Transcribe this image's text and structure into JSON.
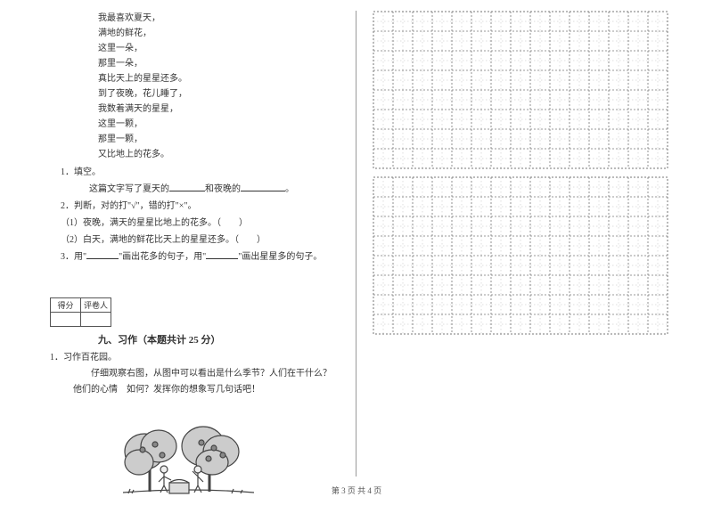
{
  "poem": {
    "lines": [
      "我最喜欢夏天，",
      "满地的鲜花，",
      "这里一朵，",
      "那里一朵，",
      "真比天上的星星还多。",
      "到了夜晚，花儿睡了，",
      "我数着满天的星星，",
      "这里一颗，",
      "那里一颗，",
      "又比地上的花多。"
    ]
  },
  "questions": {
    "q1_label": "1．填空。",
    "q1_text_a": "这篇文字写了夏天的",
    "q1_text_b": "和夜晚的",
    "q1_text_c": "。",
    "q2_label": "2．判断，对的打\"√\"，错的打\"×\"。",
    "q2_sub1": "（1）夜晚，满天的星星比地上的花多。（　　）",
    "q2_sub2": "（2）白天，满地的鲜花比天上的星星还多。（　　）",
    "q3_a": "3．用\"",
    "q3_b": "\"画出花多的句子，用\"",
    "q3_c": "\"画出星星多的句子。"
  },
  "score": {
    "h1": "得分",
    "h2": "评卷人"
  },
  "section9": {
    "title": "九、习作（本题共计 25 分）",
    "item_num": "1．习作百花园。",
    "prompt": "仔细观察右图，从图中可以看出是什么季节？人们在干什么？他们的心情　如何？发挥你的想象写几句话吧！"
  },
  "footer": {
    "text": "第 3 页  共 4 页"
  },
  "grid": {
    "rows": 8,
    "cols": 15,
    "cell": 22,
    "stroke": "#777777",
    "dash": "2,2"
  },
  "illus": {
    "stroke": "#444444",
    "fill_light": "#dddddd",
    "fill_mid": "#bbbbbb",
    "fill_dark": "#888888"
  }
}
